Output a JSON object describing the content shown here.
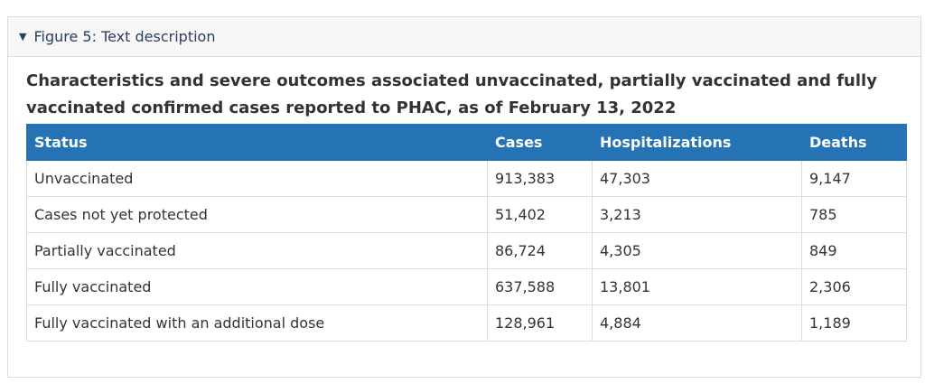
{
  "details": {
    "summary": "Figure 5: Text description"
  },
  "table": {
    "caption": "Characteristics and severe outcomes associated unvaccinated, partially vaccinated and fully vaccinated confirmed cases reported to PHAC, as of February 13, 2022",
    "headers": [
      "Status",
      "Cases",
      "Hospitalizations",
      "Deaths"
    ],
    "rows": [
      [
        "Unvaccinated",
        "913,383",
        "47,303",
        "9,147"
      ],
      [
        "Cases not yet protected",
        "51,402",
        "3,213",
        "785"
      ],
      [
        "Partially vaccinated",
        "86,724",
        "4,305",
        "849"
      ],
      [
        "Fully vaccinated",
        "637,588",
        "13,801",
        "2,306"
      ],
      [
        "Fully vaccinated with an additional dose",
        "128,961",
        "4,884",
        "1,189"
      ]
    ]
  }
}
